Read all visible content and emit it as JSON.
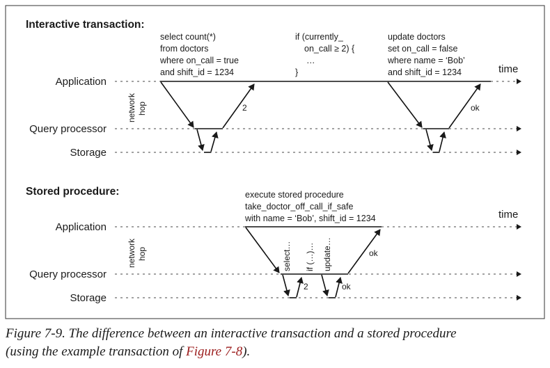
{
  "interactive": {
    "title": "Interactive transaction:",
    "rows": [
      "Application",
      "Query processor",
      "Storage"
    ],
    "time_label": "time",
    "network_hop": [
      "network",
      "hop"
    ],
    "query1": [
      "select count(*)",
      "from doctors",
      "where on_call = true",
      "and shift_id = 1234"
    ],
    "check": [
      "if (currently_",
      "on_call ≥ 2) {",
      "…",
      "}"
    ],
    "update": [
      "update doctors",
      "set on_call = false",
      "where name = ‘Bob’",
      "and shift_id = 1234"
    ],
    "result_label": "2",
    "ok_label": "ok"
  },
  "stored": {
    "title": "Stored procedure:",
    "rows": [
      "Application",
      "Query processor",
      "Storage"
    ],
    "time_label": "time",
    "network_hop": [
      "network",
      "hop"
    ],
    "call": [
      "execute stored procedure",
      "take_doctor_off_call_if_safe",
      "with name = ‘Bob’, shift_id = 1234"
    ],
    "steps": [
      "select…",
      "if (…)…",
      "update…"
    ],
    "result_label": "2",
    "ok_inner": "ok",
    "ok_outer": "ok"
  },
  "caption": {
    "text": "Figure 7-9. The difference between an interactive transaction and a stored procedure (using the example transaction of ",
    "line1": "Figure 7-9. The difference between an interactive transaction and a stored procedure",
    "line2_pre": "(using the example transaction of ",
    "link": "Figure 7-8",
    "line2_post": ")."
  }
}
